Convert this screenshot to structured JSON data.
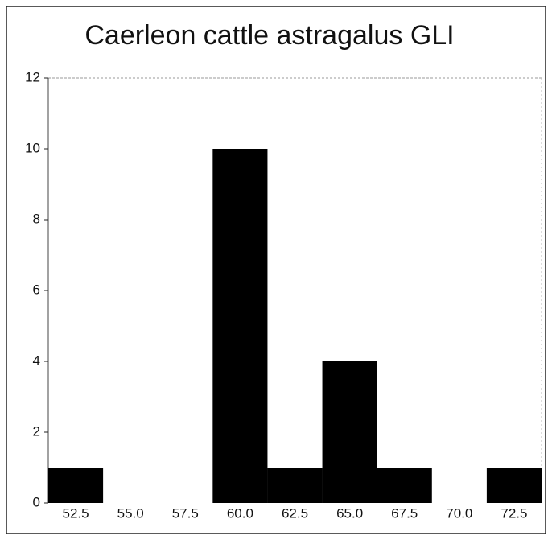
{
  "chart_data": {
    "type": "histogram",
    "title": "Caerleon cattle astragalus GLI",
    "bins": [
      51.25,
      53.75,
      56.25,
      58.75,
      61.25,
      63.75,
      66.25,
      68.75,
      71.25,
      73.75
    ],
    "values": [
      1,
      0,
      0,
      10,
      1,
      4,
      1,
      0,
      1
    ],
    "color": "#000000",
    "xlim": [
      51.25,
      73.75
    ],
    "xticks": [
      52.5,
      {
        "value": 55,
        "label": "55.0"
      },
      57.5,
      {
        "value": 60,
        "label": "60.0"
      },
      62.5,
      {
        "value": 65,
        "label": "65.0"
      },
      67.5,
      {
        "value": 70,
        "label": "70.0"
      },
      72.5
    ],
    "ylim": [
      0,
      12
    ],
    "yticks": [
      0,
      2,
      4,
      6,
      8,
      10,
      12
    ]
  }
}
